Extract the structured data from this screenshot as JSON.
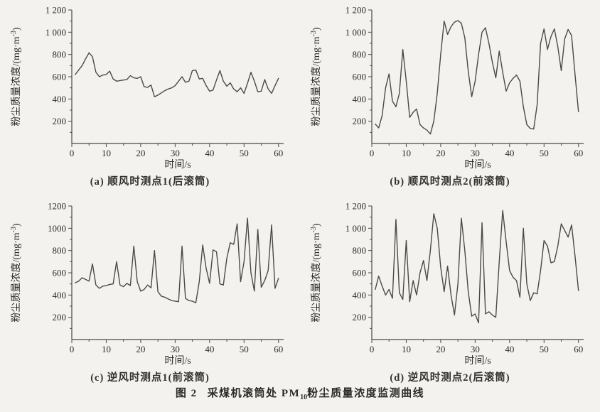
{
  "figure": {
    "caption_label": "图 2",
    "caption_prefix": "采煤机滚筒处 PM",
    "caption_sub": "10",
    "caption_suffix": "粉尘质量浓度监测曲线"
  },
  "style": {
    "line_color": "#4b4a48",
    "axis_color": "#4b4a48",
    "tick_font_size": 13,
    "label_font_size": 14
  },
  "chart_data": [
    {
      "type": "line",
      "title": "(a) 顺风时测点1(后滚筒)",
      "xlabel": "时间/s",
      "ylabel_prefix": "粉尘质量浓度/(mg·m",
      "ylabel_sup": "-3",
      "ylabel_suffix": ")",
      "xlim": [
        0,
        61.5
      ],
      "ylim": [
        0,
        1200
      ],
      "xticks": [
        0,
        10,
        20,
        30,
        40,
        50,
        60
      ],
      "xtick_labels": [
        "0",
        "10",
        "20",
        "30",
        "40",
        "50",
        "60"
      ],
      "yticks": [
        200,
        400,
        600,
        800,
        1000,
        1200
      ],
      "ytick_labels": [
        "200",
        "400",
        "600",
        "800",
        "1 000",
        "1 200"
      ],
      "x_start": 1,
      "values": [
        620,
        660,
        700,
        760,
        815,
        780,
        640,
        600,
        615,
        620,
        650,
        580,
        560,
        565,
        570,
        575,
        610,
        590,
        585,
        600,
        510,
        505,
        525,
        420,
        435,
        455,
        475,
        490,
        500,
        520,
        560,
        600,
        550,
        560,
        655,
        660,
        580,
        585,
        520,
        470,
        480,
        570,
        655,
        560,
        515,
        545,
        490,
        465,
        500,
        450,
        540,
        640,
        560,
        465,
        470,
        575,
        490,
        450,
        520,
        585
      ]
    },
    {
      "type": "line",
      "title": "(b) 顺风时测点2(前滚筒)",
      "xlabel": "时间/s",
      "ylabel_prefix": "粉尘质量浓度/(mg·m",
      "ylabel_sup": "-3",
      "ylabel_suffix": ")",
      "xlim": [
        0,
        61.5
      ],
      "ylim": [
        0,
        1200
      ],
      "xticks": [
        0,
        10,
        20,
        30,
        40,
        50,
        60
      ],
      "xtick_labels": [
        "0",
        "10",
        "20",
        "30",
        "40",
        "50",
        "60"
      ],
      "yticks": [
        200,
        400,
        600,
        800,
        1000,
        1200
      ],
      "ytick_labels": [
        "200",
        "400",
        "600",
        "800",
        "1 000",
        "1 200"
      ],
      "x_start": 1,
      "values": [
        175,
        140,
        250,
        500,
        625,
        380,
        330,
        450,
        845,
        560,
        235,
        280,
        310,
        170,
        140,
        120,
        85,
        200,
        450,
        800,
        1100,
        980,
        1050,
        1090,
        1105,
        1080,
        950,
        650,
        420,
        560,
        800,
        1000,
        1040,
        900,
        730,
        590,
        830,
        640,
        470,
        545,
        585,
        615,
        560,
        330,
        170,
        135,
        130,
        350,
        900,
        1030,
        845,
        960,
        1030,
        870,
        655,
        940,
        1025,
        970,
        620,
        285
      ]
    },
    {
      "type": "line",
      "title": "(c) 逆风时测点1(前滚筒)",
      "xlabel": "时间/s",
      "ylabel_prefix": "粉尘质量浓度/(mg·m",
      "ylabel_sup": "-3",
      "ylabel_suffix": ")",
      "xlim": [
        0,
        61.5
      ],
      "ylim": [
        0,
        1200
      ],
      "xticks": [
        0,
        10,
        20,
        30,
        40,
        50,
        60
      ],
      "xtick_labels": [
        "0",
        "10",
        "20",
        "30",
        "40",
        "50",
        "60"
      ],
      "yticks": [
        200,
        400,
        600,
        800,
        1000,
        1200
      ],
      "ytick_labels": [
        "200",
        "400",
        "600",
        "800",
        "1000",
        "1200"
      ],
      "x_start": 1,
      "values": [
        510,
        525,
        555,
        540,
        525,
        680,
        490,
        460,
        480,
        485,
        495,
        500,
        700,
        490,
        475,
        505,
        485,
        840,
        520,
        435,
        450,
        490,
        465,
        800,
        430,
        390,
        380,
        365,
        350,
        345,
        340,
        840,
        370,
        350,
        345,
        330,
        520,
        850,
        640,
        505,
        805,
        790,
        500,
        490,
        730,
        870,
        855,
        1040,
        520,
        700,
        1090,
        600,
        435,
        990,
        470,
        530,
        620,
        1030,
        460,
        550
      ]
    },
    {
      "type": "line",
      "title": "(d) 逆风时测点2(后滚筒)",
      "xlabel": "时间/s",
      "ylabel_prefix": "粉尘质量浓度/(mg·m",
      "ylabel_sup": "-3",
      "ylabel_suffix": ")",
      "xlim": [
        0,
        61.5
      ],
      "ylim": [
        0,
        1200
      ],
      "xticks": [
        0,
        10,
        20,
        30,
        40,
        50,
        60
      ],
      "xtick_labels": [
        "0",
        "10",
        "20",
        "30",
        "40",
        "50",
        "60"
      ],
      "yticks": [
        200,
        400,
        600,
        800,
        1000,
        1200
      ],
      "ytick_labels": [
        "200",
        "400",
        "600",
        "800",
        "1 000",
        "1 200"
      ],
      "x_start": 1,
      "values": [
        450,
        570,
        480,
        400,
        450,
        370,
        1080,
        420,
        360,
        890,
        340,
        530,
        400,
        600,
        710,
        530,
        800,
        1130,
        1000,
        650,
        430,
        660,
        400,
        220,
        500,
        1090,
        800,
        430,
        210,
        230,
        150,
        1050,
        230,
        250,
        220,
        200,
        700,
        1160,
        880,
        620,
        560,
        530,
        380,
        1000,
        500,
        350,
        420,
        410,
        620,
        890,
        840,
        690,
        700,
        840,
        1040,
        980,
        920,
        1030,
        750,
        440
      ]
    }
  ]
}
